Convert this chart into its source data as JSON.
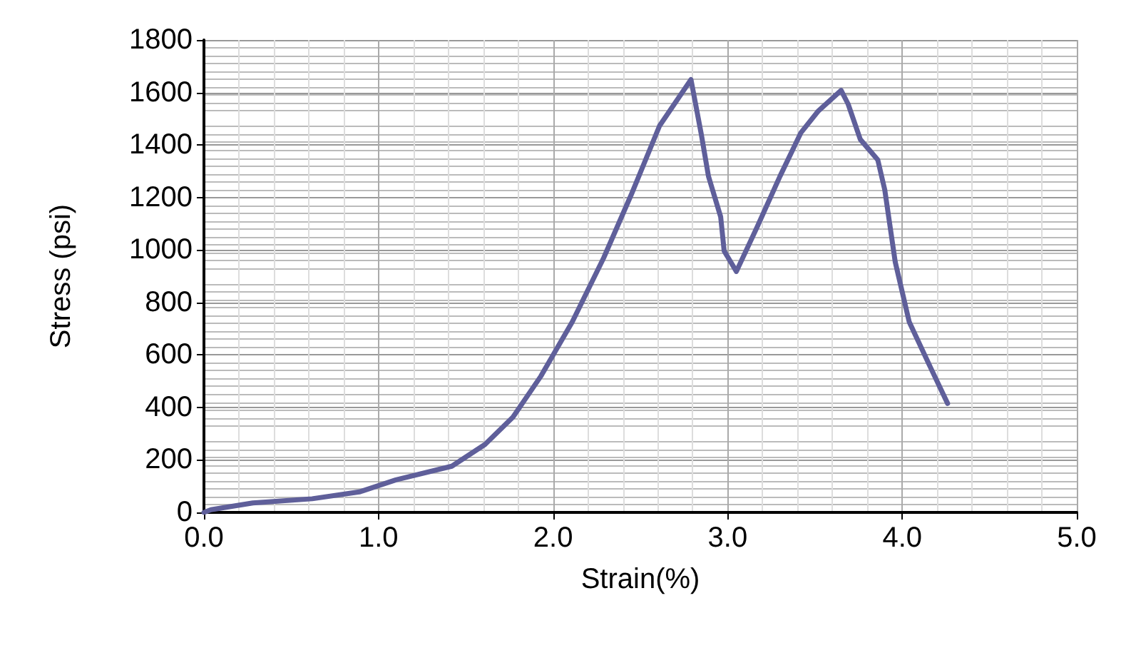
{
  "chart_data": {
    "type": "line",
    "xlabel": "Strain(%)",
    "ylabel": "Stress (psi)",
    "xlim": [
      0,
      5
    ],
    "xticks": [
      {
        "value": 0,
        "label": "0.0"
      },
      {
        "value": 1,
        "label": "1.0"
      },
      {
        "value": 2,
        "label": "2.0"
      },
      {
        "value": 3,
        "label": "3.0"
      },
      {
        "value": 4,
        "label": "4.0"
      },
      {
        "value": 5,
        "label": "5.0"
      }
    ],
    "ylim": [
      0,
      1800
    ],
    "yticks": [
      0,
      200,
      400,
      600,
      800,
      1000,
      1200,
      1400,
      1600,
      1800
    ],
    "grid": true,
    "marker": "none",
    "line_style": "solid",
    "series": [
      {
        "color": "#5f5f9a",
        "x": [
          0,
          0.04,
          0.28,
          0.62,
          0.89,
          1.1,
          1.42,
          1.61,
          1.77,
          1.93,
          2.11,
          2.29,
          2.45,
          2.61,
          2.79,
          2.85,
          2.89,
          2.96,
          2.98,
          3.05,
          3.17,
          3.3,
          3.42,
          3.52,
          3.65,
          3.69,
          3.76,
          3.86,
          3.9,
          3.96,
          4.04,
          4.16,
          4.26
        ],
        "values": [
          0,
          10,
          36,
          52,
          78,
          124,
          176,
          259,
          363,
          519,
          726,
          970,
          1214,
          1473,
          1649,
          1437,
          1281,
          1126,
          996,
          918,
          1089,
          1281,
          1447,
          1530,
          1608,
          1556,
          1421,
          1343,
          1229,
          954,
          726,
          555,
          415
        ]
      }
    ]
  }
}
